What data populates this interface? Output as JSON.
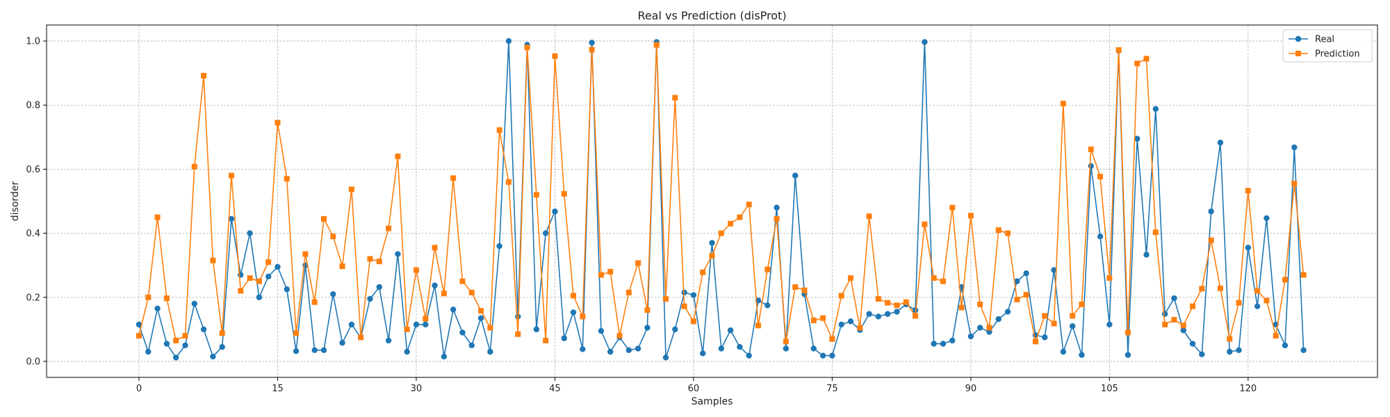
{
  "chart_data": {
    "type": "line",
    "title": "Real vs Prediction (disProt)",
    "xlabel": "Samples",
    "ylabel": "disorder",
    "xlim": [
      -10,
      134
    ],
    "ylim": [
      -0.05,
      1.05
    ],
    "x_ticks": [
      0,
      15,
      30,
      45,
      60,
      75,
      90,
      105,
      120
    ],
    "y_ticks": [
      0.0,
      0.2,
      0.4,
      0.6,
      0.8,
      1.0
    ],
    "x_tick_labels": [
      "0",
      "15",
      "30",
      "45",
      "60",
      "75",
      "90",
      "105",
      "120"
    ],
    "y_tick_labels": [
      "0.0",
      "0.2",
      "0.4",
      "0.6",
      "0.8",
      "1.0"
    ],
    "grid": true,
    "legend_position": "top-right",
    "series": [
      {
        "name": "Real",
        "color": "#1f77b4",
        "marker": "circle",
        "values": [
          0.115,
          0.03,
          0.165,
          0.055,
          0.012,
          0.05,
          0.18,
          0.1,
          0.015,
          0.045,
          0.445,
          0.27,
          0.4,
          0.2,
          0.265,
          0.295,
          0.225,
          0.032,
          0.3,
          0.035,
          0.035,
          0.21,
          0.058,
          0.115,
          0.075,
          0.195,
          0.232,
          0.065,
          0.335,
          0.03,
          0.115,
          0.115,
          0.237,
          0.015,
          0.162,
          0.09,
          0.05,
          0.135,
          0.03,
          0.36,
          1.0,
          0.14,
          0.988,
          0.1,
          0.4,
          0.468,
          0.072,
          0.153,
          0.038,
          0.995,
          0.095,
          0.03,
          0.075,
          0.035,
          0.04,
          0.105,
          0.997,
          0.012,
          0.1,
          0.215,
          0.207,
          0.025,
          0.37,
          0.04,
          0.097,
          0.045,
          0.018,
          0.19,
          0.175,
          0.48,
          0.04,
          0.58,
          0.21,
          0.04,
          0.018,
          0.018,
          0.115,
          0.125,
          0.098,
          0.148,
          0.14,
          0.148,
          0.155,
          0.178,
          0.16,
          0.997,
          0.055,
          0.055,
          0.065,
          0.232,
          0.078,
          0.105,
          0.092,
          0.132,
          0.155,
          0.25,
          0.275,
          0.082,
          0.075,
          0.285,
          0.03,
          0.11,
          0.02,
          0.61,
          0.39,
          0.115,
          0.97,
          0.02,
          0.695,
          0.333,
          0.788,
          0.148,
          0.197,
          0.097,
          0.055,
          0.022,
          0.468,
          0.683,
          0.03,
          0.035,
          0.355,
          0.172,
          0.447,
          0.115,
          0.05,
          0.668,
          0.035
        ]
      },
      {
        "name": "Prediction",
        "color": "#ff7f0e",
        "marker": "square",
        "values": [
          0.08,
          0.2,
          0.45,
          0.197,
          0.065,
          0.08,
          0.608,
          0.892,
          0.315,
          0.088,
          0.58,
          0.22,
          0.26,
          0.25,
          0.31,
          0.745,
          0.57,
          0.088,
          0.335,
          0.185,
          0.445,
          0.39,
          0.297,
          0.537,
          0.075,
          0.32,
          0.312,
          0.415,
          0.64,
          0.1,
          0.285,
          0.133,
          0.355,
          0.212,
          0.572,
          0.25,
          0.215,
          0.158,
          0.105,
          0.722,
          0.56,
          0.085,
          0.98,
          0.52,
          0.065,
          0.953,
          0.523,
          0.205,
          0.14,
          0.973,
          0.27,
          0.28,
          0.08,
          0.215,
          0.307,
          0.16,
          0.988,
          0.195,
          0.823,
          0.172,
          0.125,
          0.278,
          0.33,
          0.4,
          0.43,
          0.45,
          0.49,
          0.112,
          0.287,
          0.445,
          0.062,
          0.232,
          0.222,
          0.128,
          0.135,
          0.07,
          0.205,
          0.26,
          0.105,
          0.453,
          0.195,
          0.183,
          0.175,
          0.185,
          0.142,
          0.428,
          0.26,
          0.25,
          0.48,
          0.168,
          0.455,
          0.178,
          0.105,
          0.41,
          0.4,
          0.193,
          0.208,
          0.062,
          0.142,
          0.118,
          0.805,
          0.142,
          0.178,
          0.662,
          0.577,
          0.26,
          0.972,
          0.09,
          0.93,
          0.945,
          0.403,
          0.115,
          0.13,
          0.112,
          0.172,
          0.227,
          0.378,
          0.228,
          0.07,
          0.183,
          0.533,
          0.22,
          0.19,
          0.08,
          0.255,
          0.555,
          0.27
        ]
      }
    ]
  }
}
